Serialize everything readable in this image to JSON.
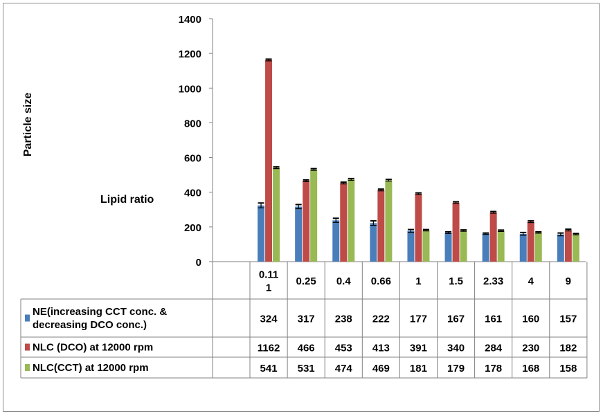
{
  "chart_data": {
    "type": "bar",
    "title": "",
    "xlabel": "Lipid ratio",
    "ylabel": "Particle size",
    "ylim": [
      0,
      1400
    ],
    "yticks": [
      0,
      200,
      400,
      600,
      800,
      1000,
      1200,
      1400
    ],
    "categories": [
      "0.11\n1",
      "0.25",
      "0.4",
      "0.66",
      "1",
      "1.5",
      "2.33",
      "4",
      "9"
    ],
    "series": [
      {
        "name": "NE(increasing CCT conc. &\ndecreasing DCO conc.)",
        "color": "#4a7ebb",
        "values": [
          324,
          317,
          238,
          222,
          177,
          167,
          161,
          160,
          157
        ],
        "errors": [
          14,
          12,
          12,
          13,
          8,
          5,
          4,
          8,
          8
        ]
      },
      {
        "name": "NLC (DCO) at 12000 rpm",
        "color": "#be4b48",
        "values": [
          1162,
          466,
          453,
          413,
          391,
          340,
          284,
          230,
          182
        ],
        "errors": [
          5,
          5,
          5,
          5,
          5,
          5,
          5,
          5,
          5
        ]
      },
      {
        "name": "NLC(CCT) at 12000 rpm",
        "color": "#98b954",
        "values": [
          541,
          531,
          474,
          469,
          181,
          179,
          178,
          168,
          158
        ],
        "errors": [
          5,
          5,
          5,
          5,
          4,
          4,
          4,
          4,
          4
        ]
      }
    ],
    "data_table": true,
    "grid": false
  }
}
